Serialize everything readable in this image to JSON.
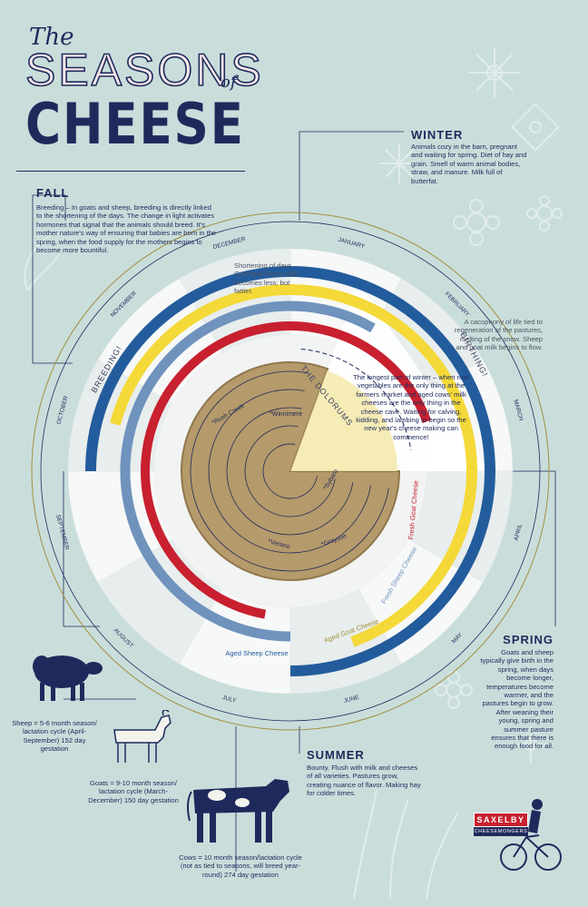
{
  "title": {
    "the": "The",
    "seasons": "SEASONS",
    "of": "of",
    "cheese": "CHEESE"
  },
  "seasons": {
    "winter": {
      "heading": "WINTER",
      "text": "Animals cozy in the barn, pregnant and waiting for spring. Diet of hay and grain. Smell of warm animal bodies, straw, and manure. Milk full of butterfat."
    },
    "fall": {
      "heading": "FALL",
      "text": "Breeding – In goats and sheep, breeding is directly linked to the shortening of the days. The change in light activates hormones that signal that the animals should breed. It's mother nature's way of ensuring that babies are born in the spring, when the food supply for the mothers begins to become more bountiful."
    },
    "spring": {
      "heading": "SPRING",
      "text": "Goats and sheep typically give birth in the spring, when days become longer, temperatures become warmer, and the pastures begin to grow. After weaning their young, spring and summer pasture ensures that there is enough food for all."
    },
    "summer": {
      "heading": "SUMMER",
      "text": "Bounty. Flush with milk and cheeses of all varieties. Pastures grow, creating nuance of flavor. Making hay for colder times."
    }
  },
  "wheel": {
    "months": [
      "JANUARY",
      "FEBRUARY",
      "MARCH",
      "APRIL",
      "MAY",
      "JUNE",
      "JULY",
      "AUGUST",
      "SEPTEMBER",
      "OCTOBER",
      "NOVEMBER",
      "DECEMBER"
    ],
    "labels": {
      "breeding": "BREEDING!",
      "birthing": "BIRTHING!",
      "doldrums": "THE DOLDRUMS"
    },
    "notes": {
      "december": "Shortening of days. Goat and sheep milk becomes less, but fattier.",
      "february": "A cacophony of life tied to regeneration of the pastures, melting of the snow. Sheep and goat milk begins to flow.",
      "doldrums": "The longest part of winter – when root vegetables are the only thing at the farmers market and aged cows' milk cheeses are the only thing in the cheese cave. Waiting for calving, kidding, and lambing to begin so the new year's cheese making can commence!"
    },
    "cheese_rings": [
      {
        "name": "Fresh Goat Cheese",
        "color": "#c8202f"
      },
      {
        "name": "Fresh Sheep Cheese",
        "color": "#6f93bd"
      },
      {
        "name": "Aged Goat Cheese",
        "color": "#f4d938"
      },
      {
        "name": "Aged Sheep Cheese",
        "color": "#235c9c"
      }
    ],
    "aged_cheeses": [
      "*Rush Creek",
      "*Winnimere",
      "*Sybaro",
      "*Verano",
      "*Grayson"
    ]
  },
  "animals": {
    "sheep": "Sheep = 5-6 month season/ lactation cycle (April-September) 152 day gestation",
    "goats": "Goats = 9-10 month season/ lactation cycle (March-December) 150 day gestation",
    "cows": "Cows = 10 month season/lactation cycle (not as tied to seasons, will breed year-round) 274 day gestation"
  },
  "logo": {
    "name": "SAXELBY",
    "subtitle": "CHEESEMONGERS"
  },
  "colors": {
    "background": "#c9dedb",
    "navy": "#1f2a5c",
    "red": "#c8202f",
    "yellow": "#f4d938",
    "blue": "#235c9c",
    "light_blue": "#6f93bd",
    "gold_line": "#a38f3f"
  }
}
